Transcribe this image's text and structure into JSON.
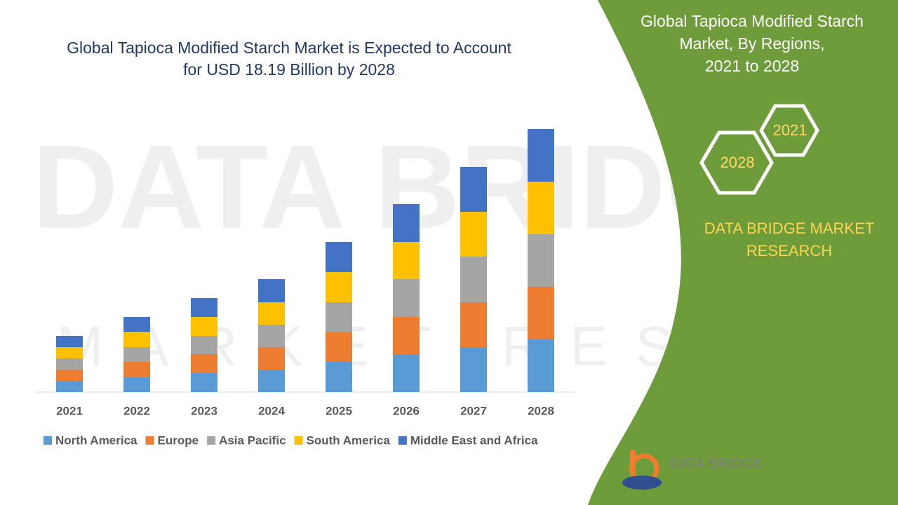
{
  "chart_data": {
    "type": "stacked_bar",
    "title": "Global Tapioca Modified Starch Market is Expected to Account\nfor USD 18.19 Billion by 2028",
    "categories": [
      "2021",
      "2022",
      "2023",
      "2024",
      "2025",
      "2026",
      "2027",
      "2028"
    ],
    "series": [
      {
        "name": "North America",
        "color": "#5b9bd5",
        "values": [
          16,
          21,
          27,
          32,
          43,
          54,
          64,
          75
        ]
      },
      {
        "name": "Europe",
        "color": "#ed7d31",
        "values": [
          16,
          22,
          27,
          32,
          43,
          53,
          64,
          75
        ]
      },
      {
        "name": "Asia Pacific",
        "color": "#a5a5a5",
        "values": [
          16,
          21,
          26,
          32,
          42,
          54,
          65,
          75
        ]
      },
      {
        "name": "South America",
        "color": "#ffc000",
        "values": [
          16,
          22,
          27,
          32,
          43,
          53,
          64,
          75
        ]
      },
      {
        "name": "Middle East and Africa",
        "color": "#4472c4",
        "values": [
          16,
          21,
          27,
          33,
          43,
          54,
          64,
          75
        ]
      }
    ],
    "ylim": [
      0,
      400
    ],
    "legend": "bottom"
  },
  "panel": {
    "title": "Global Tapioca Modified Starch\nMarket, By Regions,\n2021 to 2028",
    "hexagons": [
      "2021",
      "2028"
    ],
    "brand": "DATA BRIDGE MARKET\nRESEARCH"
  },
  "logo": {
    "text": "DATA BRIDGE"
  }
}
